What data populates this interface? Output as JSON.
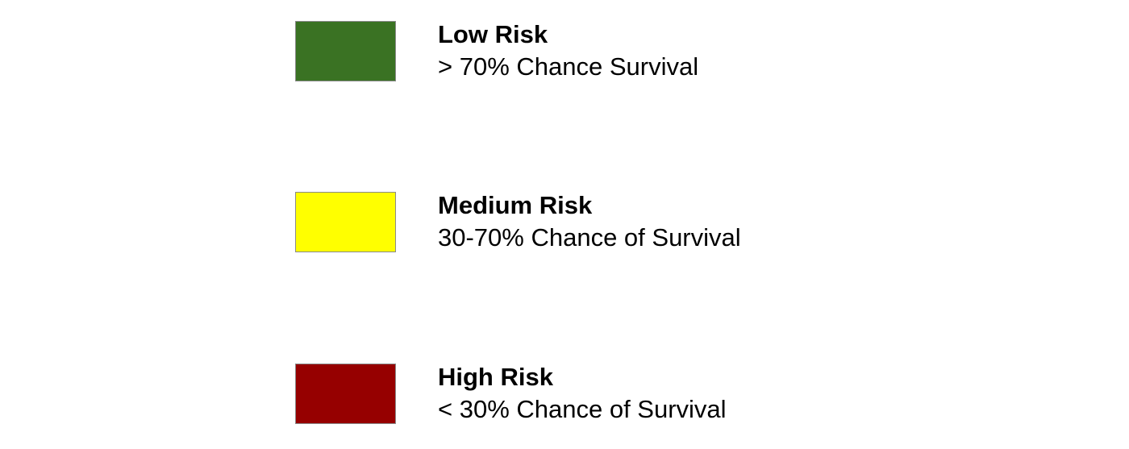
{
  "legend": {
    "items": [
      {
        "title": "Low Risk",
        "description": "> 70% Chance Survival",
        "color": "#3a7223"
      },
      {
        "title": "Medium Risk",
        "description": "30-70% Chance of Survival",
        "color": "#ffff00"
      },
      {
        "title": "High Risk",
        "description": "< 30% Chance of Survival",
        "color": "#960000"
      }
    ]
  }
}
